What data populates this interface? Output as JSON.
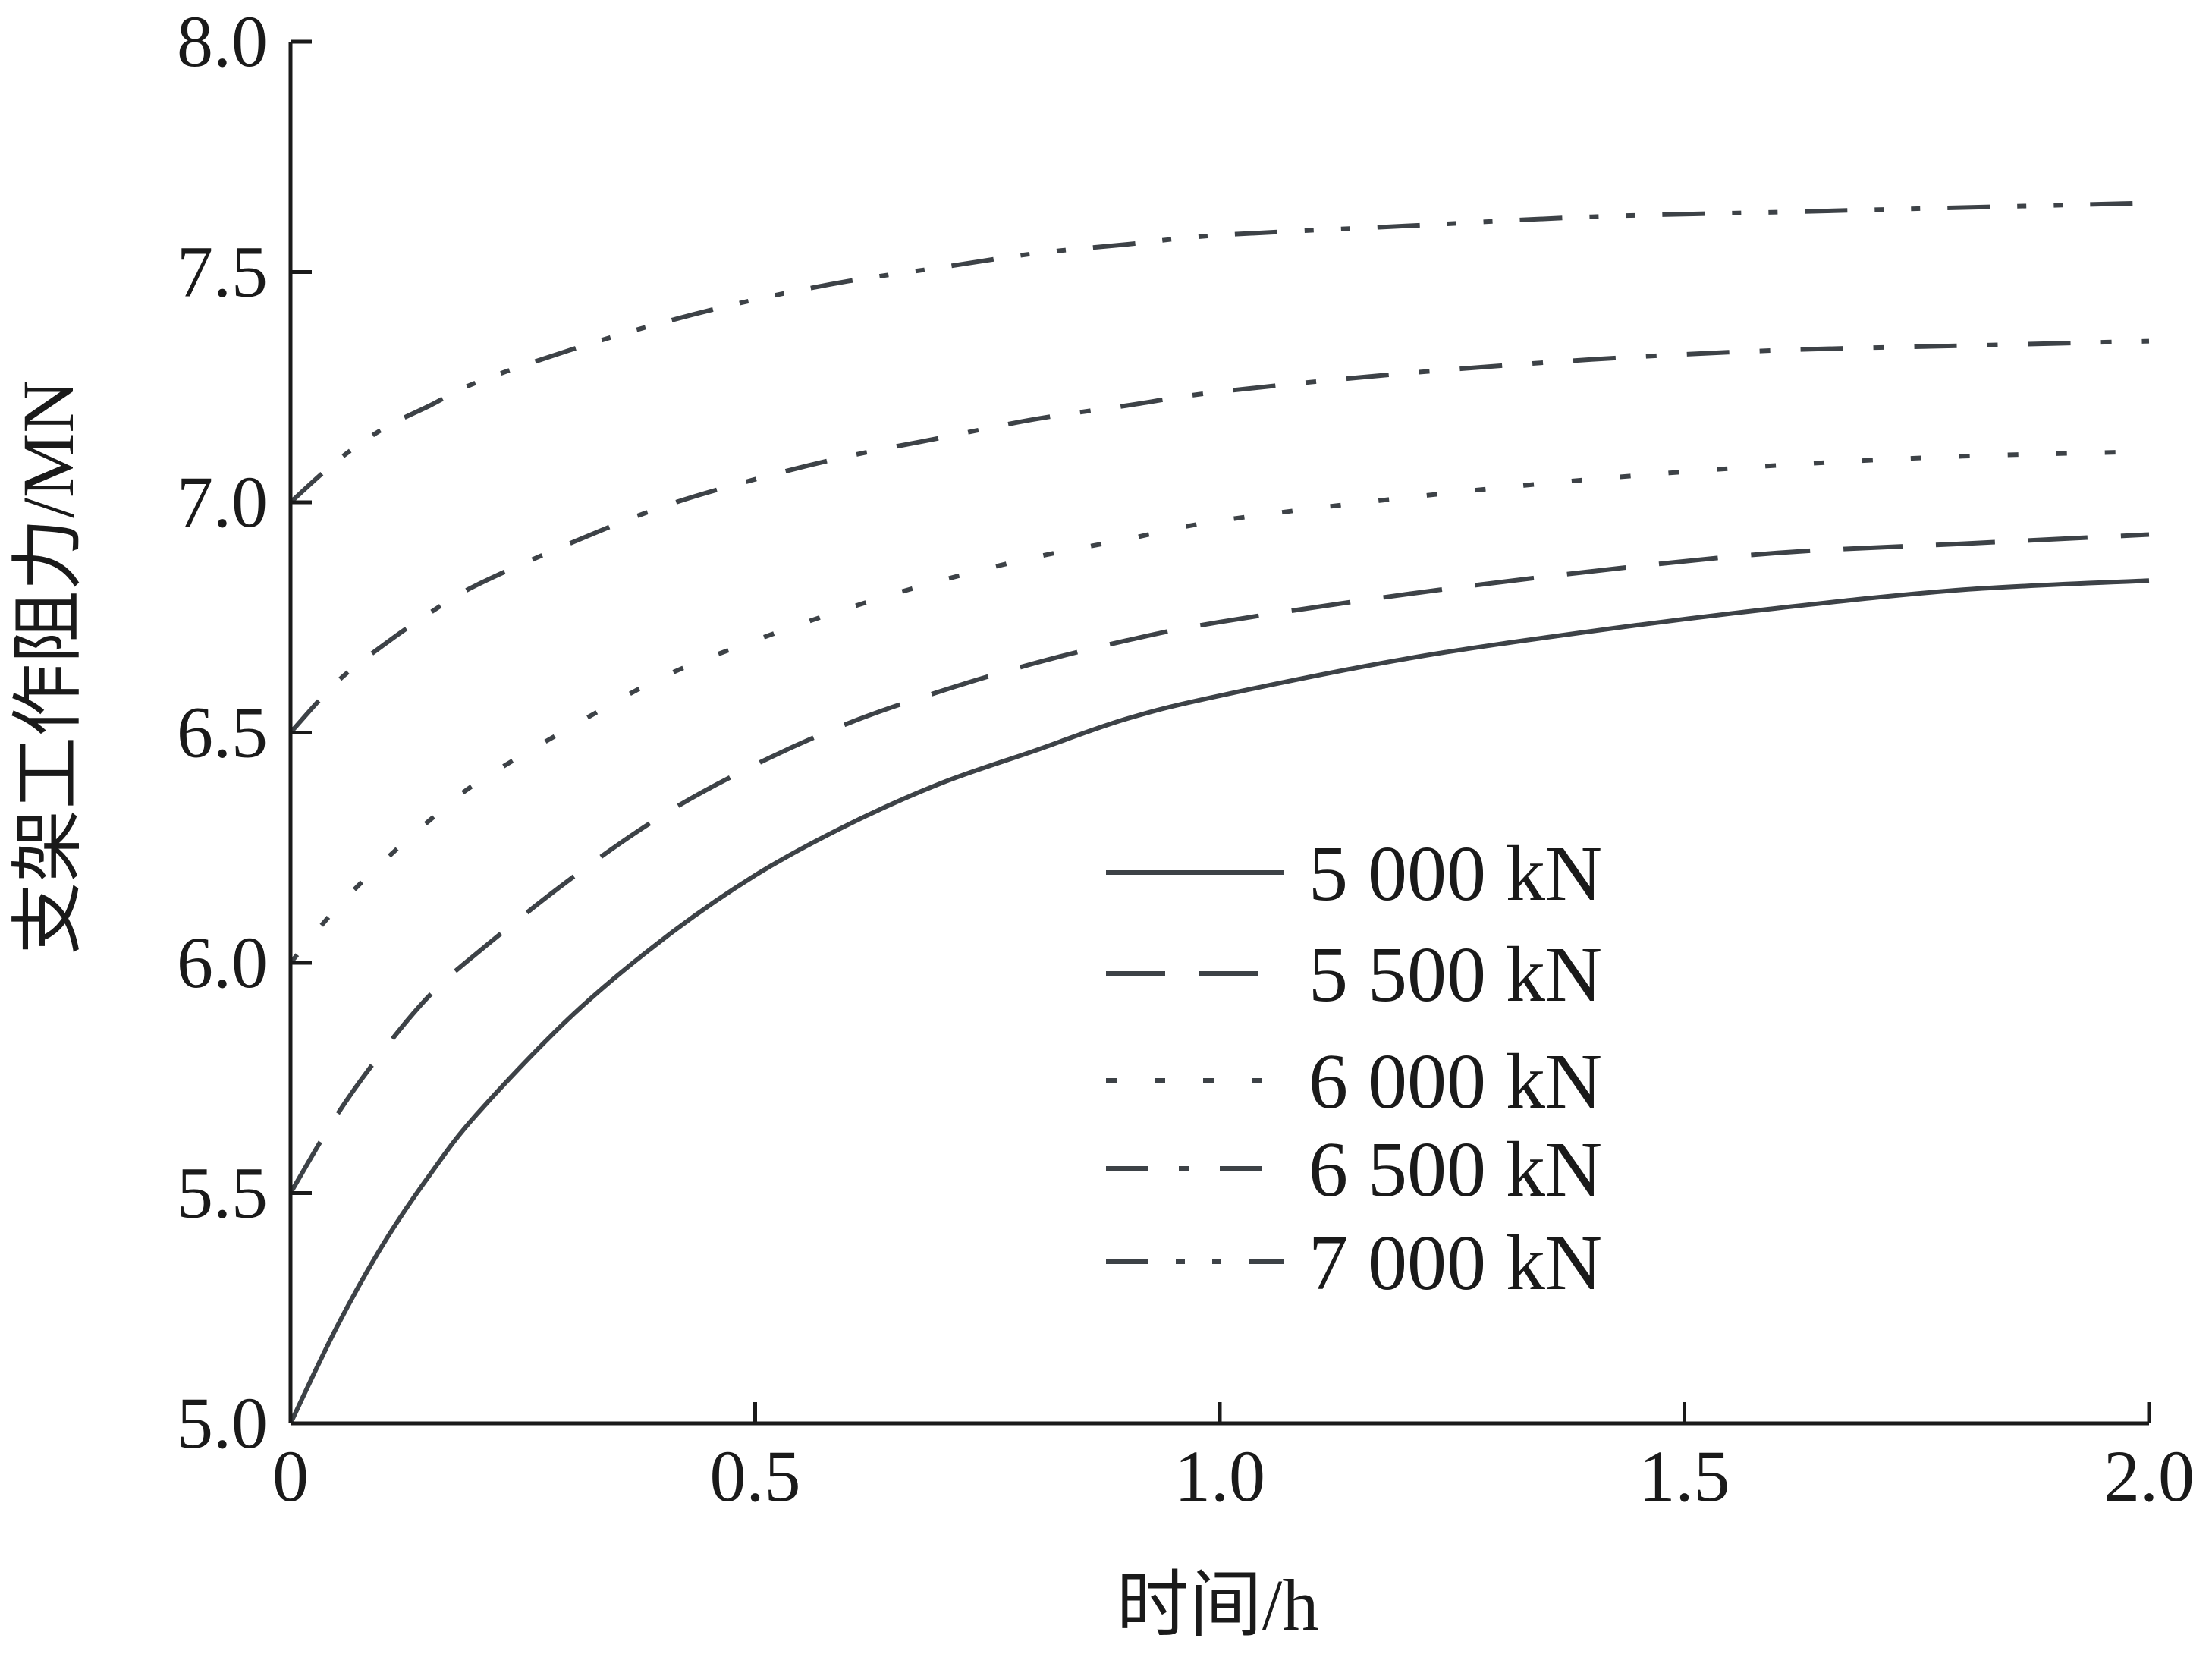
{
  "chart_data": {
    "type": "line",
    "xlabel": "时间/h",
    "ylabel": "支架工作阻力/MN",
    "xlim": [
      0,
      2.0
    ],
    "ylim": [
      5.0,
      8.0
    ],
    "x_ticks": [
      "0",
      "0.5",
      "1.0",
      "1.5",
      "2.0"
    ],
    "y_ticks": [
      "5.0",
      "5.5",
      "6.0",
      "6.5",
      "7.0",
      "7.5",
      "8.0"
    ],
    "line_color": "#3d4247",
    "legend_position": "center-right",
    "series": [
      {
        "name": "5 000 kN",
        "dash": "solid",
        "x": [
          0,
          0.05,
          0.1,
          0.15,
          0.2,
          0.3,
          0.4,
          0.5,
          0.6,
          0.7,
          0.8,
          0.9,
          1.0,
          1.2,
          1.4,
          1.6,
          1.8,
          2.0
        ],
        "y": [
          5.0,
          5.21,
          5.39,
          5.54,
          5.67,
          5.88,
          6.05,
          6.19,
          6.3,
          6.39,
          6.46,
          6.53,
          6.58,
          6.66,
          6.72,
          6.77,
          6.81,
          6.83
        ]
      },
      {
        "name": "5 500 kN",
        "dash": "long-dash",
        "x": [
          0,
          0.05,
          0.1,
          0.15,
          0.2,
          0.3,
          0.4,
          0.5,
          0.6,
          0.7,
          0.8,
          0.9,
          1.0,
          1.2,
          1.4,
          1.6,
          1.8,
          2.0
        ],
        "y": [
          5.5,
          5.67,
          5.81,
          5.93,
          6.02,
          6.18,
          6.32,
          6.43,
          6.52,
          6.59,
          6.65,
          6.7,
          6.74,
          6.8,
          6.85,
          6.89,
          6.91,
          6.93
        ]
      },
      {
        "name": "6 000 kN",
        "dash": "dotted",
        "x": [
          0,
          0.05,
          0.1,
          0.15,
          0.2,
          0.3,
          0.4,
          0.5,
          0.6,
          0.7,
          0.8,
          0.9,
          1.0,
          1.2,
          1.4,
          1.6,
          1.8,
          2.0
        ],
        "y": [
          6.0,
          6.12,
          6.22,
          6.31,
          6.39,
          6.51,
          6.62,
          6.7,
          6.77,
          6.83,
          6.88,
          6.92,
          6.96,
          7.01,
          7.05,
          7.08,
          7.1,
          7.11
        ]
      },
      {
        "name": "6 500 kN",
        "dash": "dash-dot",
        "x": [
          0,
          0.05,
          0.1,
          0.15,
          0.2,
          0.3,
          0.4,
          0.5,
          0.6,
          0.7,
          0.8,
          0.9,
          1.0,
          1.2,
          1.4,
          1.6,
          1.8,
          2.0
        ],
        "y": [
          6.5,
          6.61,
          6.69,
          6.76,
          6.82,
          6.91,
          6.99,
          7.05,
          7.1,
          7.14,
          7.18,
          7.21,
          7.24,
          7.28,
          7.31,
          7.33,
          7.34,
          7.35
        ]
      },
      {
        "name": "7 000 kN",
        "dash": "dash-dot-dot",
        "x": [
          0,
          0.05,
          0.1,
          0.15,
          0.2,
          0.3,
          0.4,
          0.5,
          0.6,
          0.7,
          0.8,
          0.9,
          1.0,
          1.2,
          1.4,
          1.6,
          1.8,
          2.0
        ],
        "y": [
          7.0,
          7.09,
          7.16,
          7.21,
          7.26,
          7.33,
          7.39,
          7.44,
          7.48,
          7.51,
          7.54,
          7.56,
          7.58,
          7.6,
          7.62,
          7.63,
          7.64,
          7.65
        ]
      }
    ]
  }
}
